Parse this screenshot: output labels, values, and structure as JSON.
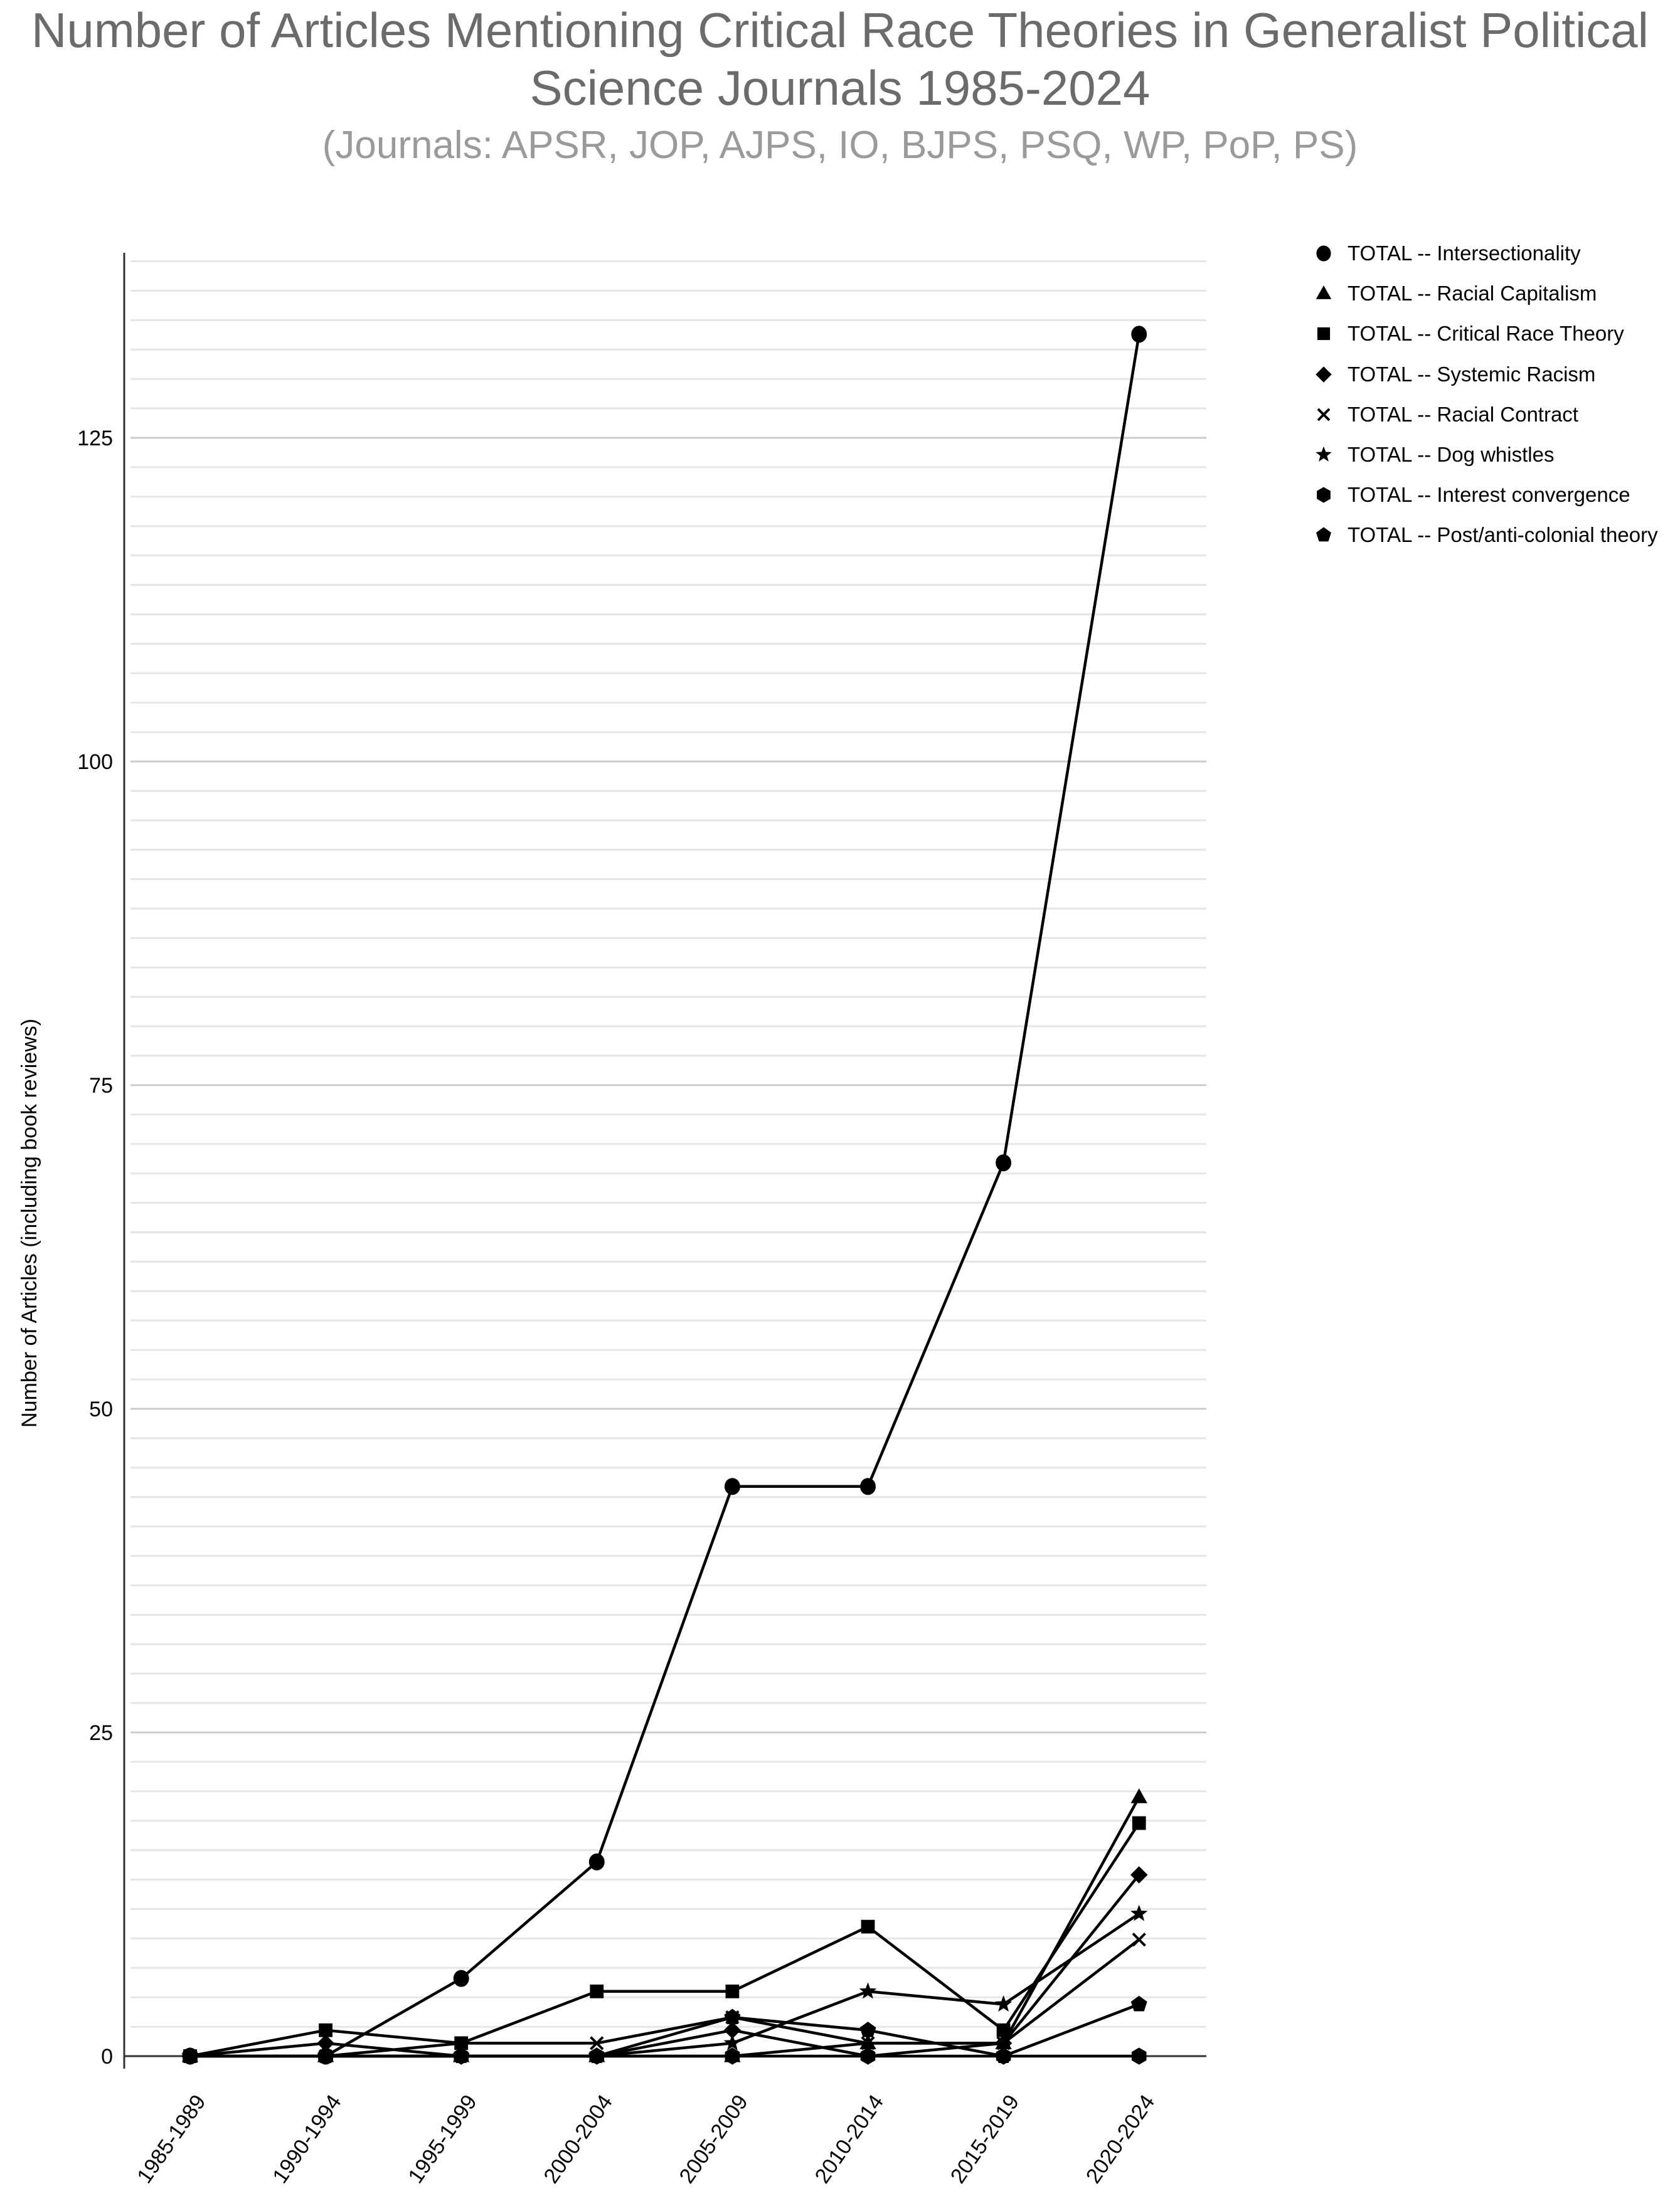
{
  "header": {
    "title": "Number of Articles Mentioning Critical Race Theories in Generalist Political Science Journals 1985-2024",
    "subtitle": "(Journals: APSR, JOP, AJPS, IO, BJPS, PSQ, WP, PoP, PS)"
  },
  "chart_data": {
    "type": "line",
    "title": "Number of Articles Mentioning Critical Race Theories in Generalist Political Science Journals 1985-2024",
    "subtitle": "(Journals: APSR, JOP, AJPS, IO, BJPS, PSQ, WP, PoP, PS)",
    "xlabel": "",
    "ylabel": "Number of Articles (including book reviews)",
    "categories": [
      "1985-1989",
      "1990-1994",
      "1995-1999",
      "2000-2004",
      "2005-2009",
      "2010-2014",
      "2015-2019",
      "2020-2024"
    ],
    "y_ticks": [
      0,
      25,
      50,
      75,
      100,
      125
    ],
    "ylim": [
      0,
      139
    ],
    "grid": true,
    "legend_position": "right",
    "series": [
      {
        "name": "TOTAL -- Intersectionality",
        "marker": "circle",
        "values": [
          0,
          0,
          6,
          15,
          44,
          44,
          69,
          133
        ]
      },
      {
        "name": "TOTAL -- Racial Capitalism",
        "marker": "triangle",
        "values": [
          0,
          0,
          0,
          0,
          0,
          1,
          1,
          20
        ]
      },
      {
        "name": "TOTAL -- Critical Race Theory",
        "marker": "square",
        "values": [
          0,
          2,
          1,
          5,
          5,
          10,
          2,
          18
        ]
      },
      {
        "name": "TOTAL -- Systemic Racism",
        "marker": "diamond",
        "values": [
          0,
          1,
          0,
          0,
          2,
          0,
          1,
          14
        ]
      },
      {
        "name": "TOTAL -- Racial Contract",
        "marker": "x",
        "values": [
          0,
          0,
          1,
          1,
          3,
          1,
          1,
          9
        ]
      },
      {
        "name": "TOTAL -- Dog whistles",
        "marker": "star",
        "values": [
          0,
          0,
          0,
          0,
          1,
          5,
          4,
          11
        ]
      },
      {
        "name": "TOTAL -- Interest convergence",
        "marker": "hexagon",
        "values": [
          0,
          0,
          0,
          0,
          0,
          0,
          0,
          0
        ]
      },
      {
        "name": "TOTAL -- Post/anti-colonial theory",
        "marker": "pentagon",
        "values": [
          0,
          0,
          0,
          0,
          3,
          2,
          0,
          4
        ]
      }
    ]
  },
  "colors": {
    "title": "#6b6b6b",
    "subtitle": "#9a9a9a",
    "series": "#000000",
    "gridline": "#e6e6e6",
    "major_gridline": "#cccccc",
    "axis": "#333333"
  }
}
